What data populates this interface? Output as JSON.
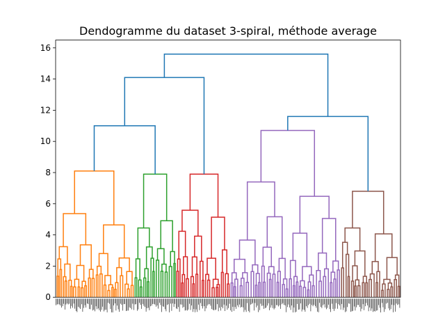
{
  "chart_data": {
    "type": "dendrogram",
    "title": "Dendogramme du dataset 3-spiral, méthode average",
    "xlabel": "",
    "ylabel": "",
    "ylim": [
      0,
      16.5
    ],
    "yticks": [
      0,
      2,
      4,
      6,
      8,
      10,
      12,
      14,
      16
    ],
    "grid": false,
    "leaf_labels_legible": false,
    "colors": {
      "above_threshold": "#1f77b4",
      "clusters": [
        "#ff7f0e",
        "#2ca02c",
        "#d62728",
        "#9467bd",
        "#8c564b"
      ]
    },
    "top_links": [
      {
        "left": "orange",
        "right": "green",
        "height": 11.0
      },
      {
        "left": "orange+green",
        "right": "red",
        "height": 14.1
      },
      {
        "left": "purple",
        "right": "brown",
        "height": 11.6
      },
      {
        "left": "orange+green+red",
        "right": "purple+brown",
        "height": 15.6
      }
    ],
    "clusters": [
      {
        "color": "orange",
        "root_height": 8.1
      },
      {
        "color": "green",
        "root_height": 7.9
      },
      {
        "color": "red",
        "root_height": 7.9
      },
      {
        "color": "purple",
        "root_height": 10.7
      },
      {
        "color": "brown",
        "root_height": 6.8
      }
    ]
  }
}
